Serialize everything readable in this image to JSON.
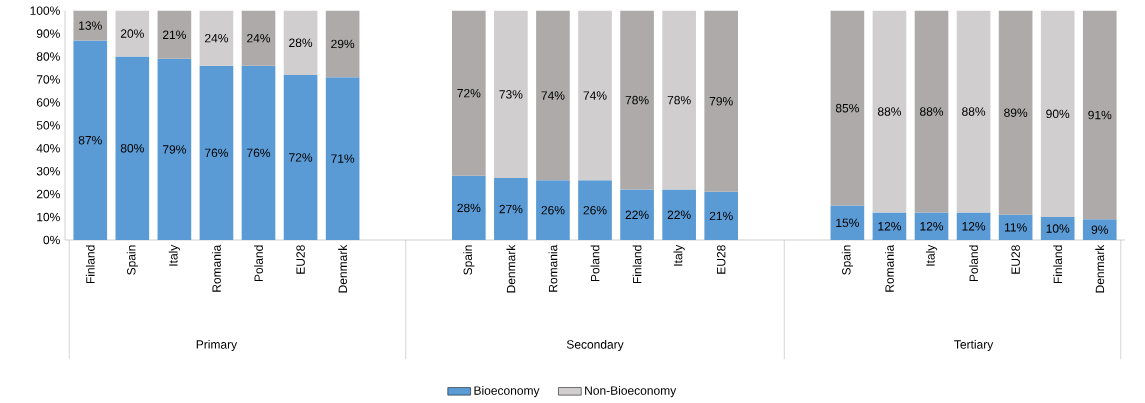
{
  "chart_data": {
    "type": "bar",
    "stacked": true,
    "categories": [
      "Finland",
      "Spain",
      "Italy",
      "Romania",
      "Poland",
      "EU28",
      "Denmark",
      null,
      null,
      "Spain",
      "Denmark",
      "Romania",
      "Poland",
      "Finland",
      "Italy",
      "EU28",
      null,
      null,
      "Spain",
      "Romania",
      "Italy",
      "Poland",
      "EU28",
      "Finland",
      "Denmark"
    ],
    "series": [
      {
        "name": "Bioeconomy",
        "color": "#5b9bd5",
        "values": [
          87,
          80,
          79,
          76,
          76,
          72,
          71,
          null,
          null,
          28,
          27,
          26,
          26,
          22,
          22,
          21,
          null,
          null,
          15,
          12,
          12,
          12,
          11,
          10,
          9
        ],
        "value_labels": [
          "87%",
          "80%",
          "79%",
          "76%",
          "76%",
          "72%",
          "71%",
          null,
          null,
          "28%",
          "27%",
          "26%",
          "26%",
          "22%",
          "22%",
          "21%",
          null,
          null,
          "15%",
          "12%",
          "12%",
          "12%",
          "11%",
          "10%",
          "9%"
        ]
      },
      {
        "name": "Non-Bioeconomy",
        "color": "#d0cece",
        "colors": [
          "#aeaaaa",
          "#d0cece",
          "#aeaaaa",
          "#d0cece",
          "#aeaaaa",
          "#d0cece",
          "#aeaaaa",
          null,
          null,
          "#aeaaaa",
          "#d0cece",
          "#aeaaaa",
          "#d0cece",
          "#aeaaaa",
          "#d0cece",
          "#aeaaaa",
          null,
          null,
          "#aeaaaa",
          "#d0cece",
          "#aeaaaa",
          "#d0cece",
          "#aeaaaa",
          "#d0cece",
          "#aeaaaa"
        ],
        "values": [
          13,
          20,
          21,
          24,
          24,
          28,
          29,
          null,
          null,
          72,
          73,
          74,
          74,
          78,
          78,
          79,
          null,
          null,
          85,
          88,
          88,
          88,
          89,
          90,
          91
        ],
        "value_labels": [
          "13%",
          "20%",
          "21%",
          "24%",
          "24%",
          "28%",
          "29%",
          null,
          null,
          "72%",
          "73%",
          "74%",
          "74%",
          "78%",
          "78%",
          "79%",
          null,
          null,
          "85%",
          "88%",
          "88%",
          "88%",
          "89%",
          "90%",
          "91%"
        ]
      }
    ],
    "ylim": [
      0,
      100
    ],
    "yticks": [
      {
        "value": 0,
        "label": "0%"
      },
      {
        "value": 10,
        "label": "10%"
      },
      {
        "value": 20,
        "label": "20%"
      },
      {
        "value": 30,
        "label": "30%"
      },
      {
        "value": 40,
        "label": "40%"
      },
      {
        "value": 50,
        "label": "50%"
      },
      {
        "value": 60,
        "label": "60%"
      },
      {
        "value": 70,
        "label": "70%"
      },
      {
        "value": 80,
        "label": "80%"
      },
      {
        "value": 90,
        "label": "90%"
      },
      {
        "value": 100,
        "label": "100%"
      }
    ],
    "annotations": [
      "Primary",
      "Secondary",
      "Tertiary"
    ],
    "legend": "bottom"
  }
}
